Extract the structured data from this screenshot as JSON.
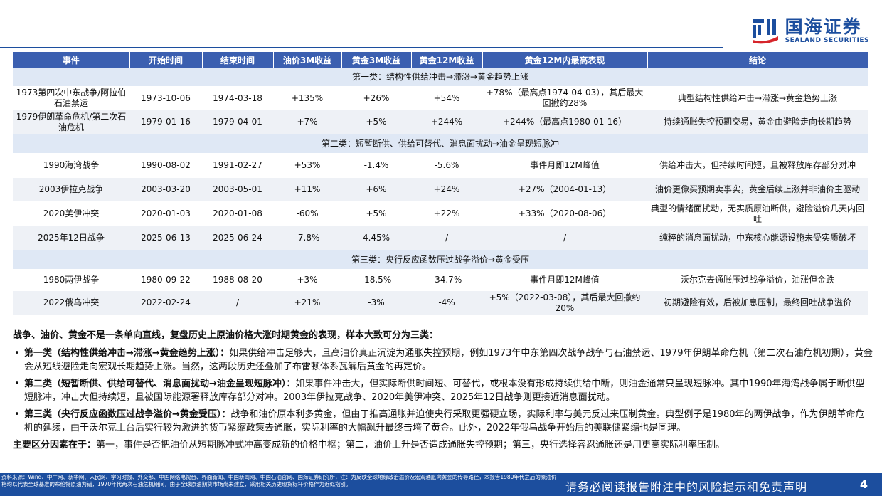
{
  "brand": {
    "name_cn": "国海证券",
    "name_en": "SEALAND SECURITIES",
    "color": "#1c4e9e"
  },
  "table": {
    "headers": [
      "事件",
      "开始时间",
      "结束时间",
      "油价3M收益",
      "黄金3M收益",
      "黄金12M收益",
      "黄金12M内最高表现",
      "结论"
    ],
    "groups": [
      {
        "title": "第一类：结构性供给冲击→滞涨→黄金趋势上涨",
        "rows": [
          [
            "1973第四次中东战争/阿拉伯石油禁运",
            "1973-10-06",
            "1974-03-18",
            "+135%",
            "+26%",
            "+54%",
            "+78%（最高点1974-04-03），其后最大回撤约28%",
            "典型结构性供给冲击→滞涨→黄金趋势上涨"
          ],
          [
            "1979伊朗革命危机/第二次石油危机",
            "1979-01-16",
            "1979-04-01",
            "+7%",
            "+5%",
            "+244%",
            "+244%（最高点1980-01-16）",
            "持续通胀失控预期交易，黄金由避险走向长期趋势"
          ]
        ]
      },
      {
        "title": "第二类：短暂断供、供给可替代、消息面扰动→油金呈现短脉冲",
        "rows": [
          [
            "1990海湾战争",
            "1990-08-02",
            "1991-02-27",
            "+53%",
            "-1.4%",
            "-5.6%",
            "事件月即12M峰值",
            "供给冲击大，但持续时间短，且被释放库存部分对冲"
          ],
          [
            "2003伊拉克战争",
            "2003-03-20",
            "2003-05-01",
            "+11%",
            "+6%",
            "+24%",
            "+27%（2004-01-13）",
            "油价更像买预期卖事实，黄金后续上涨并非油价主驱动"
          ],
          [
            "2020美伊冲突",
            "2020-01-03",
            "2020-01-08",
            "-60%",
            "+5%",
            "+22%",
            "+33%（2020-08-06）",
            "典型的情绪面扰动，无实质原油断供，避险溢价几天内回吐"
          ],
          [
            "2025年12日战争",
            "2025-06-13",
            "2025-06-24",
            "-7.8%",
            "4.45%",
            "/",
            "/",
            "纯粹的消息面扰动，中东核心能源设施未受实质破坏"
          ]
        ]
      },
      {
        "title": "第三类：央行反应函数压过战争溢价→黄金受压",
        "rows": [
          [
            "1980两伊战争",
            "1980-09-22",
            "1988-08-20",
            "+3%",
            "-18.5%",
            "-34.7%",
            "事件月即12M峰值",
            "沃尔克去通胀压过战争溢价，油涨但金跌"
          ],
          [
            "2022俄乌冲突",
            "2022-02-24",
            "/",
            "+21%",
            "-3%",
            "-4%",
            "+5%（2022-03-08），其后最大回撤约20%",
            "初期避险有效，后被加息压制，最终回吐战争溢价"
          ]
        ]
      }
    ]
  },
  "summary": {
    "lead": "战争、油价、黄金不是一条单向直线，复盘历史上原油价格大涨时期黄金的表现，样本大致可分为三类：",
    "bullets": [
      {
        "title": "第一类（结构性供给冲击→滞涨→黄金趋势上涨）：",
        "text": "如果供给冲击足够大，且高油价真正沉淀为通胀失控预期，例如1973年中东第四次战争战争与石油禁运、1979年伊朗革命危机（第二次石油危机初期），黄金会从短线避险走向宏观长期趋势上涨。当然，这两段历史还叠加了布雷顿体系瓦解后黄金的再定价。"
      },
      {
        "title": "第二类（短暂断供、供给可替代、消息面扰动→油金呈现短脉冲）：",
        "text": "如果事件冲击大，但实际断供时间短、可替代，或根本没有形成持续供给中断，则油金通常只呈现短脉冲。其中1990年海湾战争属于断供型短脉冲，冲击大但持续短，且被国际能源署释放库存部分对冲。2003年伊拉克战争、2020年美伊冲突、2025年12日战争则更接近消息面扰动。"
      },
      {
        "title": "第三类（央行反应函数压过战争溢价→黄金受压）：",
        "text": "战争和油价原本利多黄金，但由于推高通胀并迫使央行采取更强硬立场，实际利率与美元反过来压制黄金。典型例子是1980年的两伊战争，作为伊朗革命危机的延续，由于沃尔克上台后实行较为激进的货币紧缩政策去通胀，实际利率的大幅飙升最终击垮了黄金。此外，2022年俄乌战争开始后的美联储紧缩也是同理。"
      }
    ],
    "key_title": "主要区分因素在于：",
    "key_text": "第一，事件是否把油价从短期脉冲式冲高变成新的价格中枢；第二，油价上升是否造成通胀失控预期；第三，央行选择容忍通胀还是用更高实际利率压制。"
  },
  "footer": {
    "source": "资料来源：Wind、中广网、新华网、人民网、学习时报、外交部、中国网络电视台、界面新闻、中国新闻网、中国石油官网、国海证券研究所，注：为反映全球地缘政治溢价及宏观通胀向黄金的传导路径，本报告1980年代之后的原油价格均以代表全球基准的布伦特原油为锚，1970年代两次石油危机期间，由于全球原油期货市场尚未建立，采用相关历史现货标杆价格作为近似指引。",
    "disclaimer": "请务必阅读报告附注中的风险提示和免责声明",
    "page": "4"
  }
}
